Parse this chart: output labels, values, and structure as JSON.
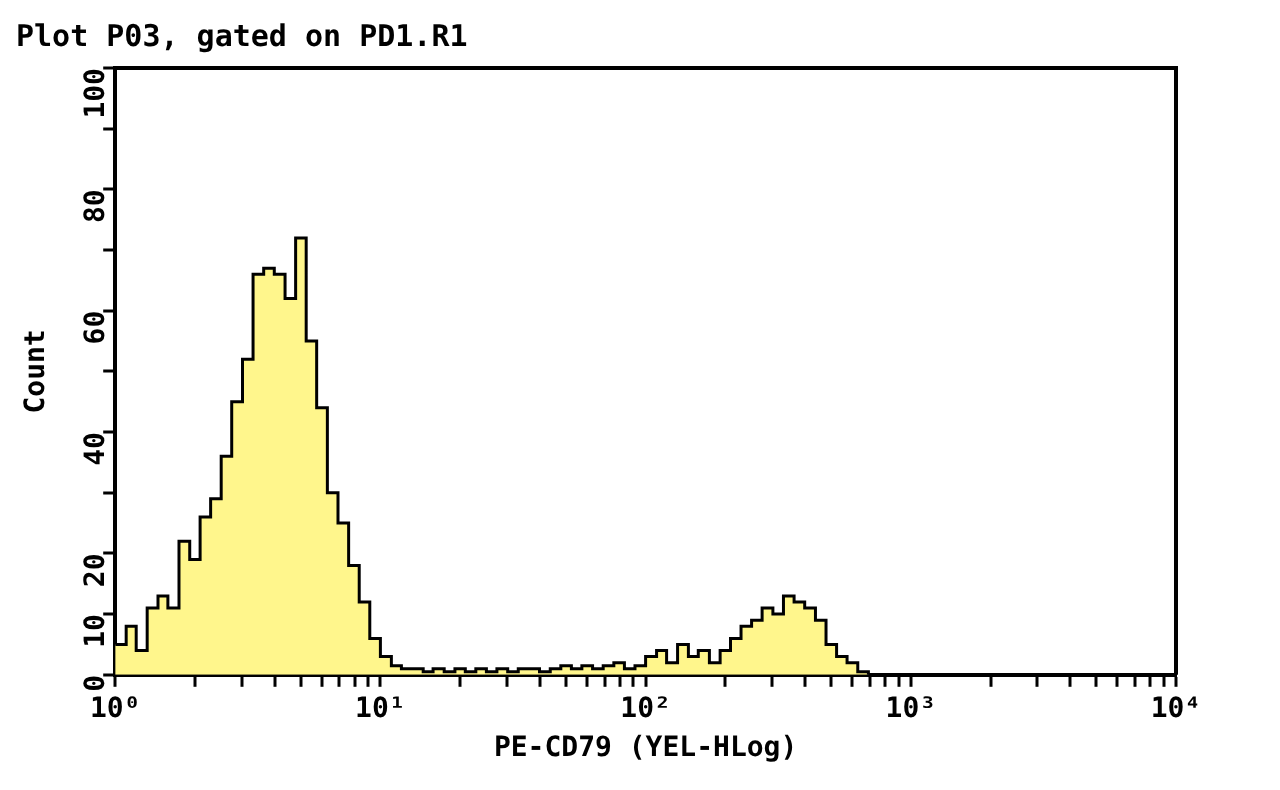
{
  "chart_data": {
    "type": "histogram",
    "title": "Plot P03, gated on PD1.R1",
    "xlabel": "PE-CD79 (YEL-HLog)",
    "ylabel": "Count",
    "log": "x",
    "bins": [
      1,
      1.1,
      1.2,
      1.32,
      1.45,
      1.58,
      1.74,
      1.91,
      2.09,
      2.29,
      2.51,
      2.75,
      3.02,
      3.31,
      3.63,
      3.98,
      4.37,
      4.79,
      5.25,
      5.75,
      6.31,
      6.92,
      7.59,
      8.32,
      9.12,
      10,
      11,
      12,
      13.2,
      14.5,
      15.8,
      17.4,
      19.1,
      20.9,
      22.9,
      25.1,
      27.5,
      30.2,
      33.1,
      36.3,
      39.8,
      43.7,
      47.9,
      52.5,
      57.5,
      63.1,
      69.2,
      75.9,
      83.2,
      91.2,
      100,
      110,
      120,
      132,
      145,
      158,
      174,
      191,
      209,
      229,
      251,
      275,
      302,
      331,
      363,
      398,
      437,
      479,
      525,
      575,
      631,
      692,
      759,
      832,
      912,
      1000
    ],
    "values": [
      5,
      8,
      4,
      11,
      13,
      11,
      22,
      19,
      26,
      29,
      36,
      45,
      52,
      66,
      67,
      66,
      62,
      72,
      55,
      44,
      30,
      25,
      18,
      12,
      6,
      3,
      1.5,
      1,
      1,
      0.5,
      1,
      0.5,
      1,
      0.5,
      1,
      0.5,
      1,
      0.5,
      1,
      1,
      0.5,
      1,
      1.5,
      1,
      1.5,
      1,
      1.5,
      2,
      1,
      1.5,
      3,
      4,
      2,
      5,
      3,
      4,
      2,
      4,
      6,
      8,
      9,
      11,
      10,
      13,
      12,
      11,
      9,
      5,
      3,
      2,
      0.5,
      0,
      0,
      0,
      0
    ],
    "color": "#fff68c",
    "xlim": [
      1,
      10000
    ],
    "xticks": [
      {
        "value": 1,
        "label": "10⁰"
      },
      {
        "value": 2,
        "label": null
      },
      {
        "value": 3,
        "label": null
      },
      {
        "value": 4,
        "label": null
      },
      {
        "value": 5,
        "label": null
      },
      {
        "value": 6,
        "label": null
      },
      {
        "value": 7,
        "label": null
      },
      {
        "value": 8,
        "label": null
      },
      {
        "value": 9,
        "label": null
      },
      {
        "value": 10,
        "label": "10¹"
      },
      {
        "value": 20,
        "label": null
      },
      {
        "value": 30,
        "label": null
      },
      {
        "value": 40,
        "label": null
      },
      {
        "value": 50,
        "label": null
      },
      {
        "value": 60,
        "label": null
      },
      {
        "value": 70,
        "label": null
      },
      {
        "value": 80,
        "label": null
      },
      {
        "value": 90,
        "label": null
      },
      {
        "value": 100,
        "label": "10²"
      },
      {
        "value": 200,
        "label": null
      },
      {
        "value": 300,
        "label": null
      },
      {
        "value": 400,
        "label": null
      },
      {
        "value": 500,
        "label": null
      },
      {
        "value": 600,
        "label": null
      },
      {
        "value": 700,
        "label": null
      },
      {
        "value": 800,
        "label": null
      },
      {
        "value": 900,
        "label": null
      },
      {
        "value": 1000,
        "label": "10³"
      },
      {
        "value": 2000,
        "label": null
      },
      {
        "value": 3000,
        "label": null
      },
      {
        "value": 4000,
        "label": null
      },
      {
        "value": 5000,
        "label": null
      },
      {
        "value": 6000,
        "label": null
      },
      {
        "value": 7000,
        "label": null
      },
      {
        "value": 8000,
        "label": null
      },
      {
        "value": 9000,
        "label": null
      },
      {
        "value": 10000,
        "label": "10⁴"
      }
    ],
    "ylim": [
      0,
      100
    ],
    "yticks": [
      0,
      10,
      20,
      {
        "value": 30,
        "label": null
      },
      40,
      {
        "value": 50,
        "label": null
      },
      60,
      {
        "value": 70,
        "label": null
      },
      80,
      {
        "value": 90,
        "label": null
      },
      100
    ],
    "grid": false,
    "legend": false
  }
}
